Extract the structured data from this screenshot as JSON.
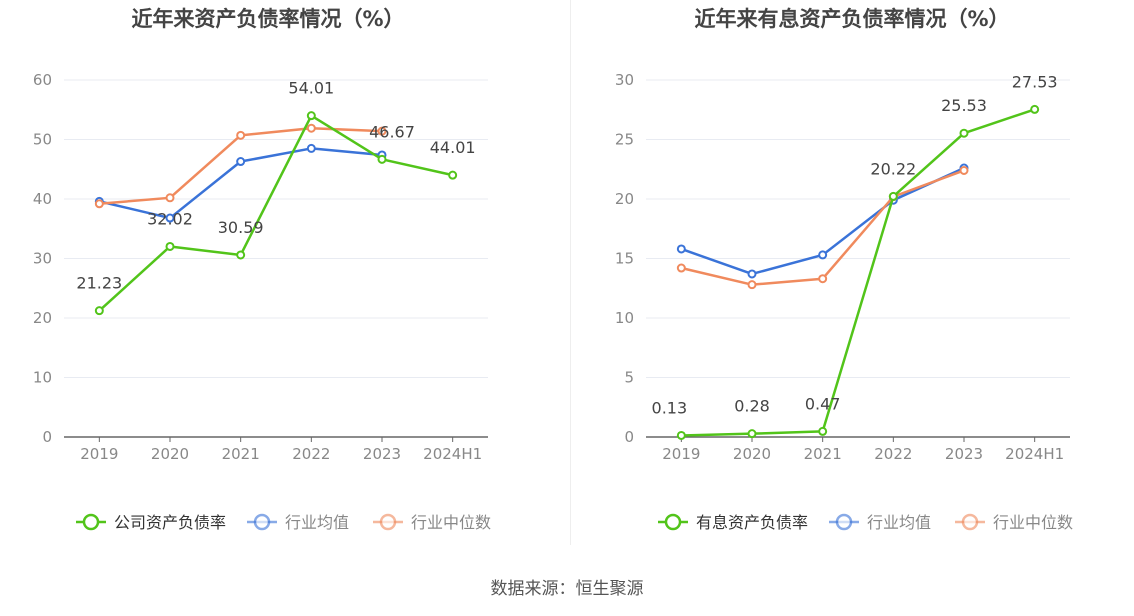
{
  "source_text": "数据来源：恒生聚源",
  "colors": {
    "company": "#52c41a",
    "avg": "#3a73d8",
    "median": "#f08a5d",
    "axis": "#666666",
    "grid": "#e8ebf2",
    "tick": "#888888",
    "title": "#444444"
  },
  "chart_data": [
    {
      "type": "line",
      "title": "近年来资产负债率情况（%）",
      "categories": [
        "2019",
        "2020",
        "2021",
        "2022",
        "2023",
        "2024H1"
      ],
      "ylim": [
        0,
        60
      ],
      "yticks": [
        0,
        10,
        20,
        30,
        40,
        50,
        60
      ],
      "grid": true,
      "legend_position": "bottom",
      "series": [
        {
          "name": "公司资产负债率",
          "color": "#52c41a",
          "values": [
            21.23,
            32.02,
            30.59,
            54.01,
            46.67,
            44.01
          ],
          "labels": [
            "21.23",
            "32.02",
            "30.59",
            "54.01",
            "46.67",
            "44.01"
          ]
        },
        {
          "name": "行业均值",
          "color": "#3a73d8",
          "values": [
            39.6,
            36.8,
            46.3,
            48.5,
            47.4,
            null
          ]
        },
        {
          "name": "行业中位数",
          "color": "#f08a5d",
          "values": [
            39.2,
            40.2,
            50.7,
            51.9,
            51.4,
            null
          ]
        }
      ]
    },
    {
      "type": "line",
      "title": "近年来有息资产负债率情况（%）",
      "categories": [
        "2019",
        "2020",
        "2021",
        "2022",
        "2023",
        "2024H1"
      ],
      "ylim": [
        0,
        30
      ],
      "yticks": [
        0,
        5,
        10,
        15,
        20,
        25,
        30
      ],
      "grid": true,
      "legend_position": "bottom",
      "series": [
        {
          "name": "有息资产负债率",
          "color": "#52c41a",
          "values": [
            0.13,
            0.28,
            0.47,
            20.22,
            25.53,
            27.53
          ],
          "labels": [
            "0.13",
            "0.28",
            "0.47",
            "20.22",
            "25.53",
            "27.53"
          ]
        },
        {
          "name": "行业均值",
          "color": "#3a73d8",
          "values": [
            15.8,
            13.7,
            15.3,
            19.9,
            22.6,
            null
          ]
        },
        {
          "name": "行业中位数",
          "color": "#f08a5d",
          "values": [
            14.2,
            12.8,
            13.3,
            20.2,
            22.4,
            null
          ]
        }
      ]
    }
  ]
}
